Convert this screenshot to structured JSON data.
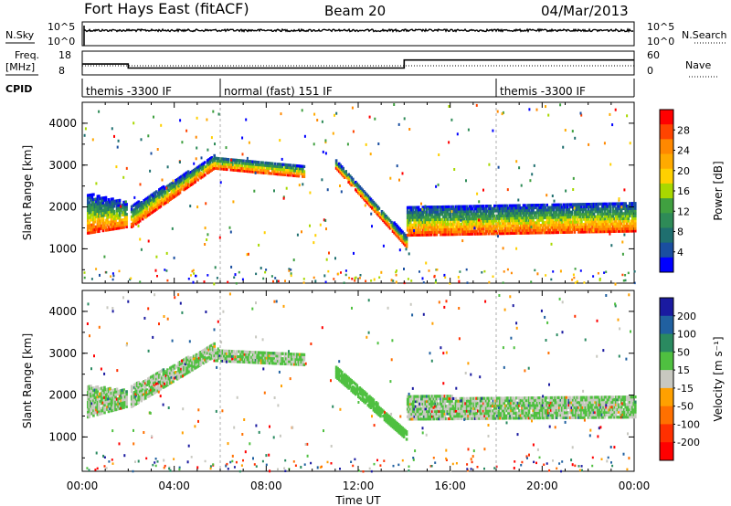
{
  "header": {
    "station": "Fort Hays East (fitACF)",
    "beam": "Beam 20",
    "date": "04/Mar/2013"
  },
  "top_panels": {
    "nsky_label": "N.Sky",
    "nsky_ticks": [
      "10^5",
      "10^0"
    ],
    "nsearch_ticks": [
      "10^5",
      "10^0"
    ],
    "nsearch_label": "N.Search",
    "freq_label": "Freq.",
    "freq_unit": "[MHz]",
    "freq_ticks": [
      "18",
      "8"
    ],
    "nave_ticks": [
      "60",
      "0"
    ],
    "nave_label": "Nave",
    "cpid_label": "CPID",
    "cpid_segments": [
      {
        "label": "themis -3300 IF",
        "start": 0,
        "end": 6
      },
      {
        "label": "normal (fast) 151 IF",
        "start": 6,
        "end": 18
      },
      {
        "label": "themis -3300 IF",
        "start": 18,
        "end": 24
      }
    ],
    "freq_series": [
      {
        "t": 0,
        "mhz": 12.5
      },
      {
        "t": 2,
        "mhz": 12.5
      },
      {
        "t": 2,
        "mhz": 10.5
      },
      {
        "t": 14,
        "mhz": 10.5
      },
      {
        "t": 14,
        "mhz": 14.5
      },
      {
        "t": 24,
        "mhz": 14.5
      }
    ]
  },
  "chart_data": [
    {
      "type": "heatmap",
      "name": "Power",
      "ylabel": "Slant Range [km]",
      "xlabel": "Time UT",
      "xlim": [
        0,
        24
      ],
      "ylim": [
        180,
        4500
      ],
      "yticks": [
        1000,
        2000,
        3000,
        4000
      ],
      "xticks": [
        "00:00",
        "04:00",
        "08:00",
        "12:00",
        "16:00",
        "20:00",
        "00:00"
      ],
      "colorbar": {
        "label": "Power [dB]",
        "ticks": [
          "28",
          "24",
          "20",
          "16",
          "12",
          "8",
          "4"
        ],
        "colors": [
          "#ff0000",
          "#ff4400",
          "#ff8800",
          "#ffaa00",
          "#ffd000",
          "#a8d800",
          "#40a040",
          "#2e8b57",
          "#1f6f6f",
          "#1a4ea0",
          "#0000ff"
        ]
      },
      "bands": [
        {
          "t0": 0.2,
          "t1": 1.9,
          "low": [
            1350,
            1500
          ],
          "high": [
            2300,
            2100
          ]
        },
        {
          "t0": 2.1,
          "t1": 5.7,
          "low": [
            1500,
            2900
          ],
          "high": [
            2000,
            3200
          ]
        },
        {
          "t0": 5.7,
          "t1": 9.6,
          "low": [
            2900,
            2700
          ],
          "high": [
            3200,
            3000
          ]
        },
        {
          "t0": 11.0,
          "t1": 14.1,
          "low": [
            2900,
            1000
          ],
          "high": [
            3100,
            1250
          ]
        },
        {
          "t0": 14.1,
          "t1": 24.0,
          "low": [
            1300,
            1400
          ],
          "high": [
            2000,
            2100
          ]
        }
      ]
    },
    {
      "type": "heatmap",
      "name": "Velocity",
      "ylabel": "Slant Range [km]",
      "xlabel": "Time UT",
      "xlim": [
        0,
        24
      ],
      "ylim": [
        180,
        4500
      ],
      "yticks": [
        1000,
        2000,
        3000,
        4000
      ],
      "xticks": [
        "00:00",
        "04:00",
        "08:00",
        "12:00",
        "16:00",
        "20:00",
        "00:00"
      ],
      "colorbar": {
        "label": "Velocity [m s⁻¹]",
        "ticks": [
          "200",
          "100",
          "50",
          "15",
          "-15",
          "-50",
          "-100",
          "-200"
        ],
        "colors": [
          "#1a1aa0",
          "#2060a0",
          "#2a8a60",
          "#4fc040",
          "#c8c8c0",
          "#ffa000",
          "#ff7000",
          "#ff3000",
          "#ff0000"
        ]
      },
      "bands": [
        {
          "t0": 0.2,
          "t1": 1.9,
          "low": [
            1450,
            1700
          ],
          "high": [
            2200,
            2100
          ]
        },
        {
          "t0": 2.1,
          "t1": 5.7,
          "low": [
            1700,
            2900
          ],
          "high": [
            2200,
            3200
          ]
        },
        {
          "t0": 5.7,
          "t1": 9.6,
          "low": [
            2800,
            2700
          ],
          "high": [
            3100,
            3000
          ]
        },
        {
          "t0": 11.0,
          "t1": 14.1,
          "low": [
            2400,
            900
          ],
          "high": [
            2700,
            1100
          ]
        },
        {
          "t0": 14.1,
          "t1": 24.0,
          "low": [
            1400,
            1450
          ],
          "high": [
            1950,
            1950
          ]
        }
      ]
    }
  ],
  "footer": {
    "xlabel": "Time UT"
  }
}
